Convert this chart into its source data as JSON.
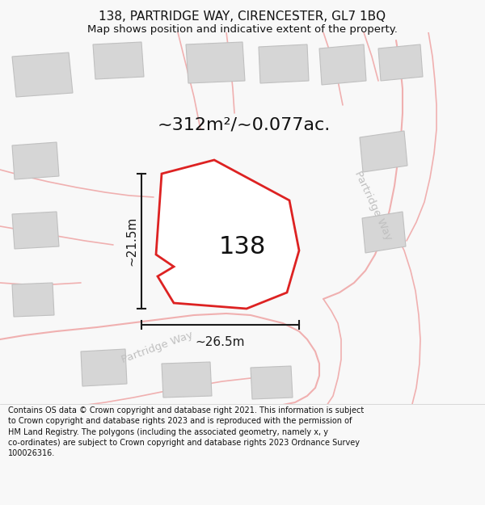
{
  "title": "138, PARTRIDGE WAY, CIRENCESTER, GL7 1BQ",
  "subtitle": "Map shows position and indicative extent of the property.",
  "area_label": "~312m²/~0.077ac.",
  "plot_number": "138",
  "dim_width": "~26.5m",
  "dim_height": "~21.5m",
  "road_label_bottom": "Partridge Way",
  "road_label_right": "Partridge Way",
  "footer": "Contains OS data © Crown copyright and database right 2021. This information is subject to Crown copyright and database rights 2023 and is reproduced with the permission of HM Land Registry. The polygons (including the associated geometry, namely x, y co-ordinates) are subject to Crown copyright and database rights 2023 Ordnance Survey 100026316.",
  "bg_color": "#f8f8f8",
  "map_bg": "#ffffff",
  "plot_fill": "#ffffff",
  "plot_edge": "#dd2222",
  "building_fill": "#d6d6d6",
  "building_edge": "#c0c0c0",
  "road_line_color": "#f0b0b0",
  "road_edge_color": "#e89898",
  "dim_line_color": "#1a1a1a",
  "title_color": "#111111",
  "footer_color": "#111111",
  "area_label_color": "#111111",
  "plot_label_color": "#111111",
  "road_label_color": "#c0c0c0",
  "title_fontsize": 11,
  "subtitle_fontsize": 9.5,
  "area_fontsize": 16,
  "plot_num_fontsize": 22,
  "road_label_fontsize": 9.5,
  "footer_fontsize": 7.0
}
